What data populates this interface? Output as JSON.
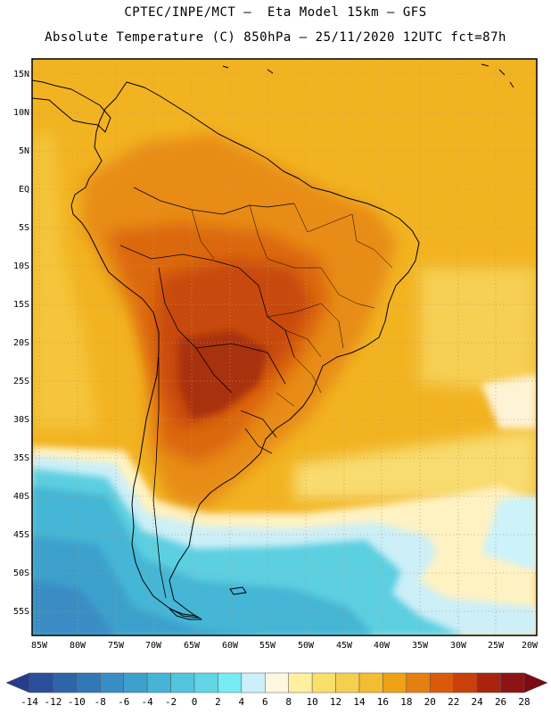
{
  "header": {
    "line1": "CPTEC/INPE/MCT –  Eta Model 15km – GFS",
    "line2": "Absolute Temperature (C) 850hPa – 25/11/2020 12UTC fct=87h"
  },
  "map": {
    "lat_labels": [
      "15N",
      "10N",
      "5N",
      "EQ",
      "5S",
      "10S",
      "15S",
      "20S",
      "25S",
      "30S",
      "35S",
      "40S",
      "45S",
      "50S",
      "55S"
    ],
    "lon_labels": [
      "85W",
      "80W",
      "75W",
      "70W",
      "65W",
      "60W",
      "55W",
      "50W",
      "45W",
      "40W",
      "35W",
      "30W",
      "25W",
      "20W"
    ],
    "background_color": "#f2b321"
  },
  "colorbar": {
    "labels": [
      "-14",
      "-12",
      "-10",
      "-8",
      "-6",
      "-4",
      "-2",
      "0",
      "2",
      "4",
      "6",
      "8",
      "10",
      "12",
      "14",
      "16",
      "18",
      "20",
      "22",
      "24",
      "26",
      "28"
    ],
    "below_color": "#283c8c",
    "above_color": "#7a0a14",
    "colors": [
      "#2b4f9b",
      "#2e64a8",
      "#3278b6",
      "#3a8cc4",
      "#3ea0cc",
      "#46b4d6",
      "#52c4de",
      "#60d6e6",
      "#76ecf2",
      "#cceffa",
      "#fff6e0",
      "#ffef9e",
      "#f8e06a",
      "#f5cf50",
      "#f2bd30",
      "#eda218",
      "#e4800f",
      "#da5a0c",
      "#c8400c",
      "#a8240e",
      "#8c1414"
    ]
  }
}
